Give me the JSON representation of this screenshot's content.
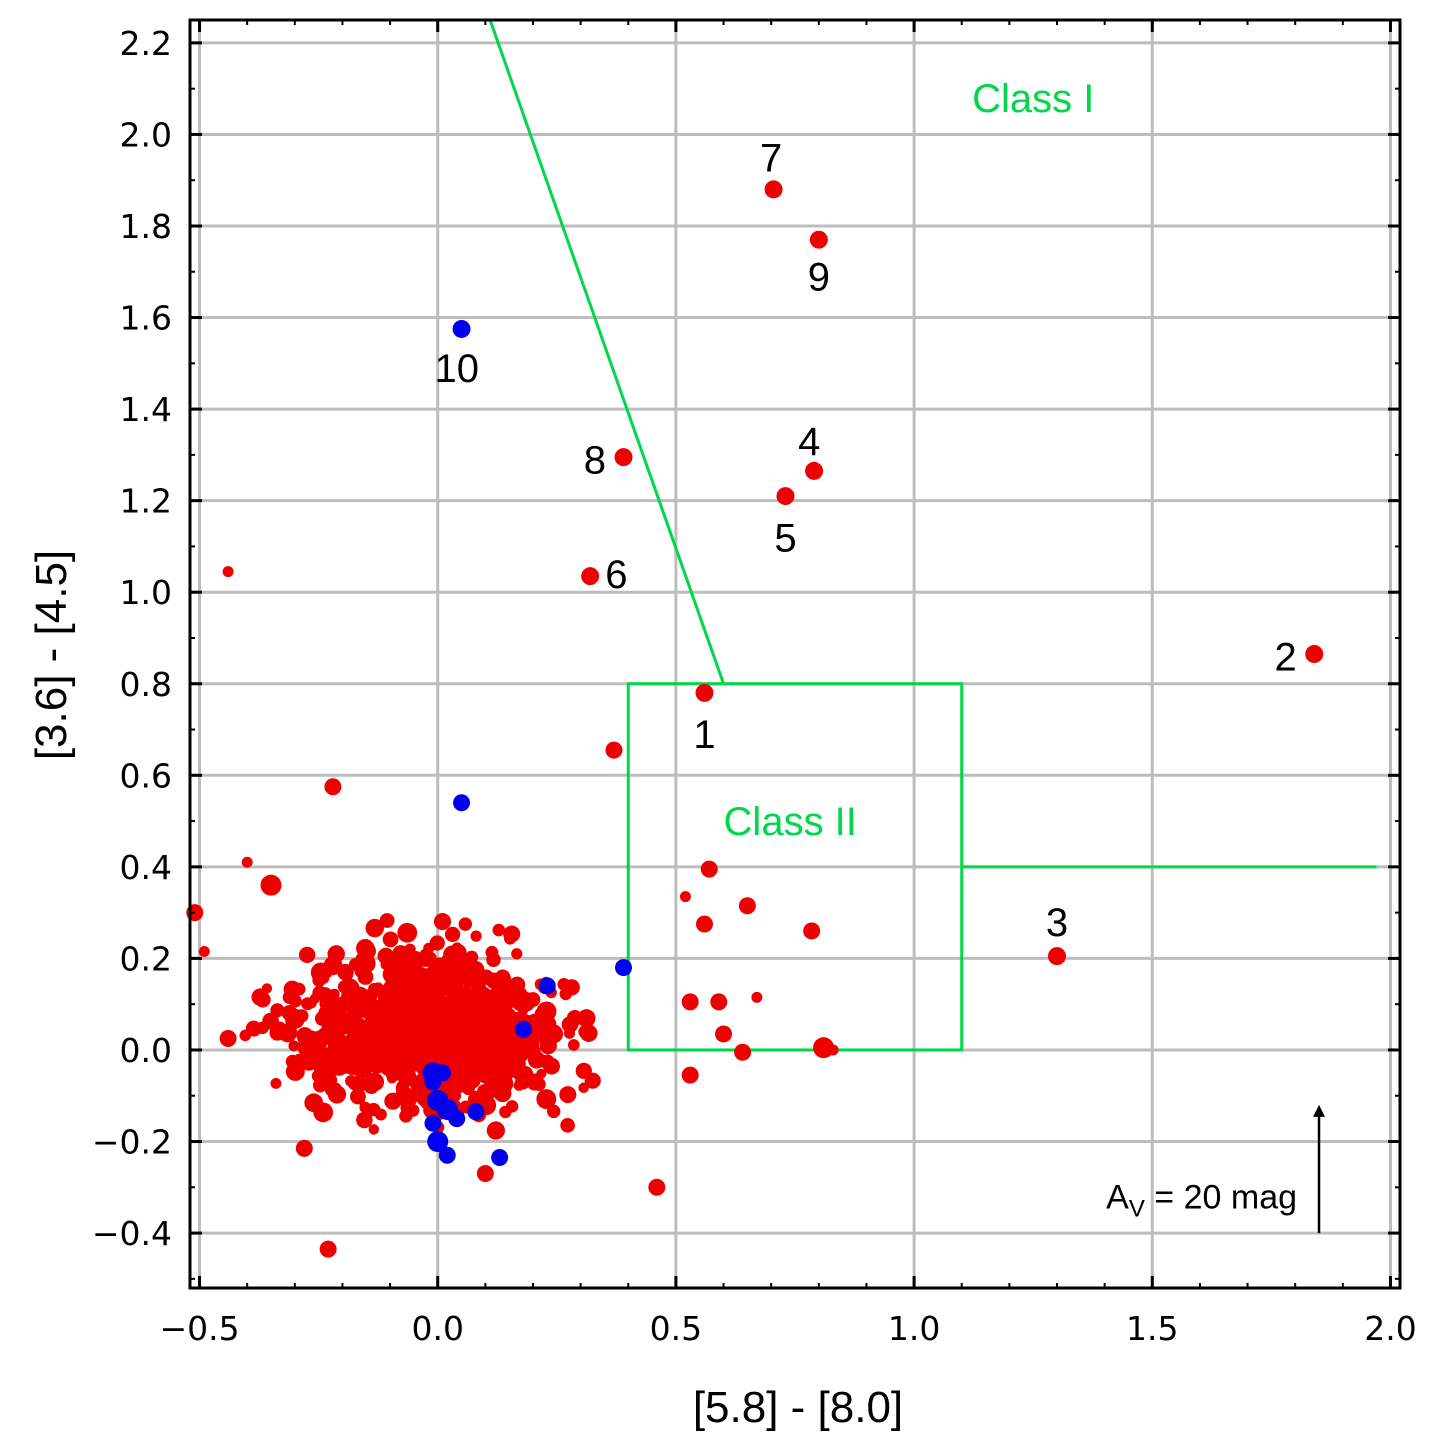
{
  "chart_data": {
    "type": "scatter",
    "xlabel": "[5.8] - [8.0]",
    "ylabel": "[3.6] - [4.5]",
    "xlim": [
      -0.52,
      2.02
    ],
    "ylim": [
      -0.52,
      2.25
    ],
    "grid": true,
    "x_ticks": [
      -0.5,
      0.0,
      0.5,
      1.0,
      1.5,
      2.0
    ],
    "x_tick_labels": [
      "−0.5",
      "0.0",
      "0.5",
      "1.0",
      "1.5",
      "2.0"
    ],
    "y_ticks": [
      -0.4,
      -0.2,
      0.0,
      0.2,
      0.4,
      0.6,
      0.8,
      1.0,
      1.2,
      1.4,
      1.6,
      1.8,
      2.0,
      2.2
    ],
    "y_tick_labels": [
      "−0.4",
      "−0.2",
      "0.0",
      "0.2",
      "0.4",
      "0.6",
      "0.8",
      "1.0",
      "1.2",
      "1.4",
      "1.6",
      "1.8",
      "2.0",
      "2.2"
    ],
    "colors": {
      "red": "#ee0000",
      "blue": "#0000ee",
      "green": "#00d84a",
      "grid": "#bdbdbd"
    },
    "regions": {
      "class1_line": [
        [
          0.11,
          2.25
        ],
        [
          0.6,
          0.8
        ]
      ],
      "class2_box": {
        "x0": 0.4,
        "x1": 1.1,
        "y0": 0.0,
        "y1": 0.8
      },
      "class2_extension": [
        [
          1.1,
          0.4
        ],
        [
          2.0,
          0.4
        ]
      ],
      "class1_label": "Class I",
      "class1_label_pos": [
        1.25,
        2.08
      ],
      "class2_label": "Class II",
      "class2_label_pos": [
        0.74,
        0.5
      ]
    },
    "labeled_sources": [
      {
        "id": "1",
        "x": 0.56,
        "y": 0.78,
        "color": "red",
        "label_pos": [
          0.56,
          0.69
        ]
      },
      {
        "id": "2",
        "x": 1.84,
        "y": 0.865,
        "color": "red",
        "label_pos": [
          1.78,
          0.86
        ]
      },
      {
        "id": "3",
        "x": 1.3,
        "y": 0.205,
        "color": "red",
        "label_pos": [
          1.3,
          0.28
        ]
      },
      {
        "id": "4",
        "x": 0.79,
        "y": 1.265,
        "color": "red",
        "label_pos": [
          0.78,
          1.33
        ]
      },
      {
        "id": "5",
        "x": 0.73,
        "y": 1.21,
        "color": "red",
        "label_pos": [
          0.73,
          1.12
        ]
      },
      {
        "id": "6",
        "x": 0.32,
        "y": 1.035,
        "color": "red",
        "label_pos": [
          0.375,
          1.04
        ]
      },
      {
        "id": "7",
        "x": 0.705,
        "y": 1.88,
        "color": "red",
        "label_pos": [
          0.7,
          1.95
        ]
      },
      {
        "id": "8",
        "x": 0.39,
        "y": 1.295,
        "color": "red",
        "label_pos": [
          0.33,
          1.29
        ]
      },
      {
        "id": "9",
        "x": 0.8,
        "y": 1.77,
        "color": "red",
        "label_pos": [
          0.8,
          1.69
        ]
      },
      {
        "id": "10",
        "x": 0.05,
        "y": 1.575,
        "color": "blue",
        "label_pos": [
          0.04,
          1.49
        ]
      }
    ],
    "scatter_outliers": [
      {
        "x": -0.44,
        "y": 1.045,
        "s": "s"
      },
      {
        "x": -0.22,
        "y": 0.575,
        "s": "m"
      },
      {
        "x": 0.05,
        "y": 0.54,
        "s": "m",
        "c": "blue"
      },
      {
        "x": 0.37,
        "y": 0.655,
        "s": "m"
      },
      {
        "x": -0.4,
        "y": 0.41,
        "s": "s"
      },
      {
        "x": -0.35,
        "y": 0.36,
        "s": "l"
      },
      {
        "x": 0.57,
        "y": 0.395,
        "s": "m"
      },
      {
        "x": 0.65,
        "y": 0.315,
        "s": "m"
      },
      {
        "x": 0.785,
        "y": 0.26,
        "s": "m"
      },
      {
        "x": 0.56,
        "y": 0.275,
        "s": "m"
      },
      {
        "x": 0.52,
        "y": 0.335,
        "s": "s"
      },
      {
        "x": 0.67,
        "y": 0.115,
        "s": "s"
      },
      {
        "x": 0.81,
        "y": 0.005,
        "s": "l"
      },
      {
        "x": 0.83,
        "y": 0.0,
        "s": "s"
      },
      {
        "x": 0.64,
        "y": -0.005,
        "s": "m"
      },
      {
        "x": 0.6,
        "y": 0.035,
        "s": "m"
      },
      {
        "x": 0.59,
        "y": 0.105,
        "s": "m"
      },
      {
        "x": 0.53,
        "y": 0.105,
        "s": "m"
      },
      {
        "x": 0.53,
        "y": -0.055,
        "s": "m"
      },
      {
        "x": 0.46,
        "y": -0.3,
        "s": "m"
      },
      {
        "x": -0.23,
        "y": -0.435,
        "s": "m"
      },
      {
        "x": -0.51,
        "y": 0.3,
        "s": "m"
      },
      {
        "x": -0.49,
        "y": 0.215,
        "s": "s"
      },
      {
        "x": -0.44,
        "y": 0.025,
        "s": "m"
      },
      {
        "x": -0.28,
        "y": -0.215,
        "s": "m"
      },
      {
        "x": 0.1,
        "y": -0.27,
        "s": "m"
      },
      {
        "x": 0.13,
        "y": -0.235,
        "s": "m",
        "c": "blue"
      },
      {
        "x": 0.23,
        "y": 0.14,
        "s": "m",
        "c": "blue"
      },
      {
        "x": 0.18,
        "y": 0.045,
        "s": "m",
        "c": "blue"
      },
      {
        "x": 0.39,
        "y": 0.18,
        "s": "m",
        "c": "blue"
      },
      {
        "x": -0.01,
        "y": -0.05,
        "s": "l",
        "c": "blue"
      },
      {
        "x": -0.01,
        "y": -0.07,
        "s": "m",
        "c": "blue"
      },
      {
        "x": 0.01,
        "y": -0.05,
        "s": "m",
        "c": "blue"
      },
      {
        "x": 0.0,
        "y": -0.11,
        "s": "l",
        "c": "blue"
      },
      {
        "x": 0.02,
        "y": -0.13,
        "s": "l",
        "c": "blue"
      },
      {
        "x": 0.04,
        "y": -0.15,
        "s": "m",
        "c": "blue"
      },
      {
        "x": 0.0,
        "y": -0.2,
        "s": "l",
        "c": "blue"
      },
      {
        "x": 0.02,
        "y": -0.23,
        "s": "m",
        "c": "blue"
      },
      {
        "x": 0.08,
        "y": -0.135,
        "s": "m",
        "c": "blue"
      },
      {
        "x": -0.01,
        "y": -0.16,
        "s": "m",
        "c": "blue"
      }
    ],
    "cluster": {
      "center_x": -0.02,
      "center_y": 0.05,
      "spread_x": 0.13,
      "spread_y": 0.085,
      "count": 900
    },
    "annotation": {
      "text": "A",
      "subscript": "V",
      "rest": " = 20 mag",
      "arrow_x": 1.85,
      "arrow_from": -0.4,
      "arrow_to": -0.12
    }
  }
}
